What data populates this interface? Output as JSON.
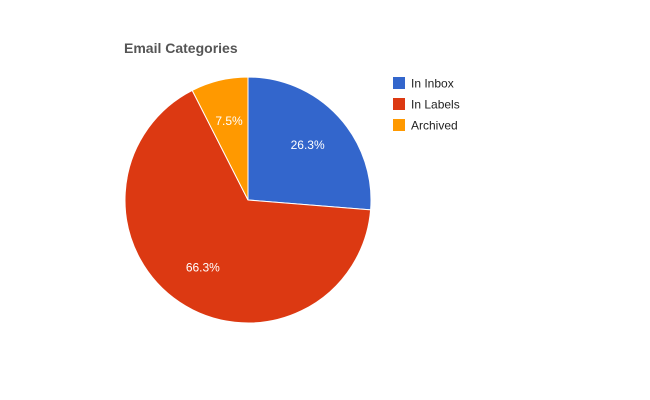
{
  "chart_data": {
    "type": "pie",
    "title": "Email Categories",
    "slices": [
      {
        "label": "In Inbox",
        "value": 26.3,
        "display": "26.3%",
        "color": "#3366cc"
      },
      {
        "label": "In Labels",
        "value": 66.3,
        "display": "66.3%",
        "color": "#dc3912"
      },
      {
        "label": "Archived",
        "value": 7.5,
        "display": "7.5%",
        "color": "#ff9900"
      }
    ],
    "legend_placement": "right"
  }
}
